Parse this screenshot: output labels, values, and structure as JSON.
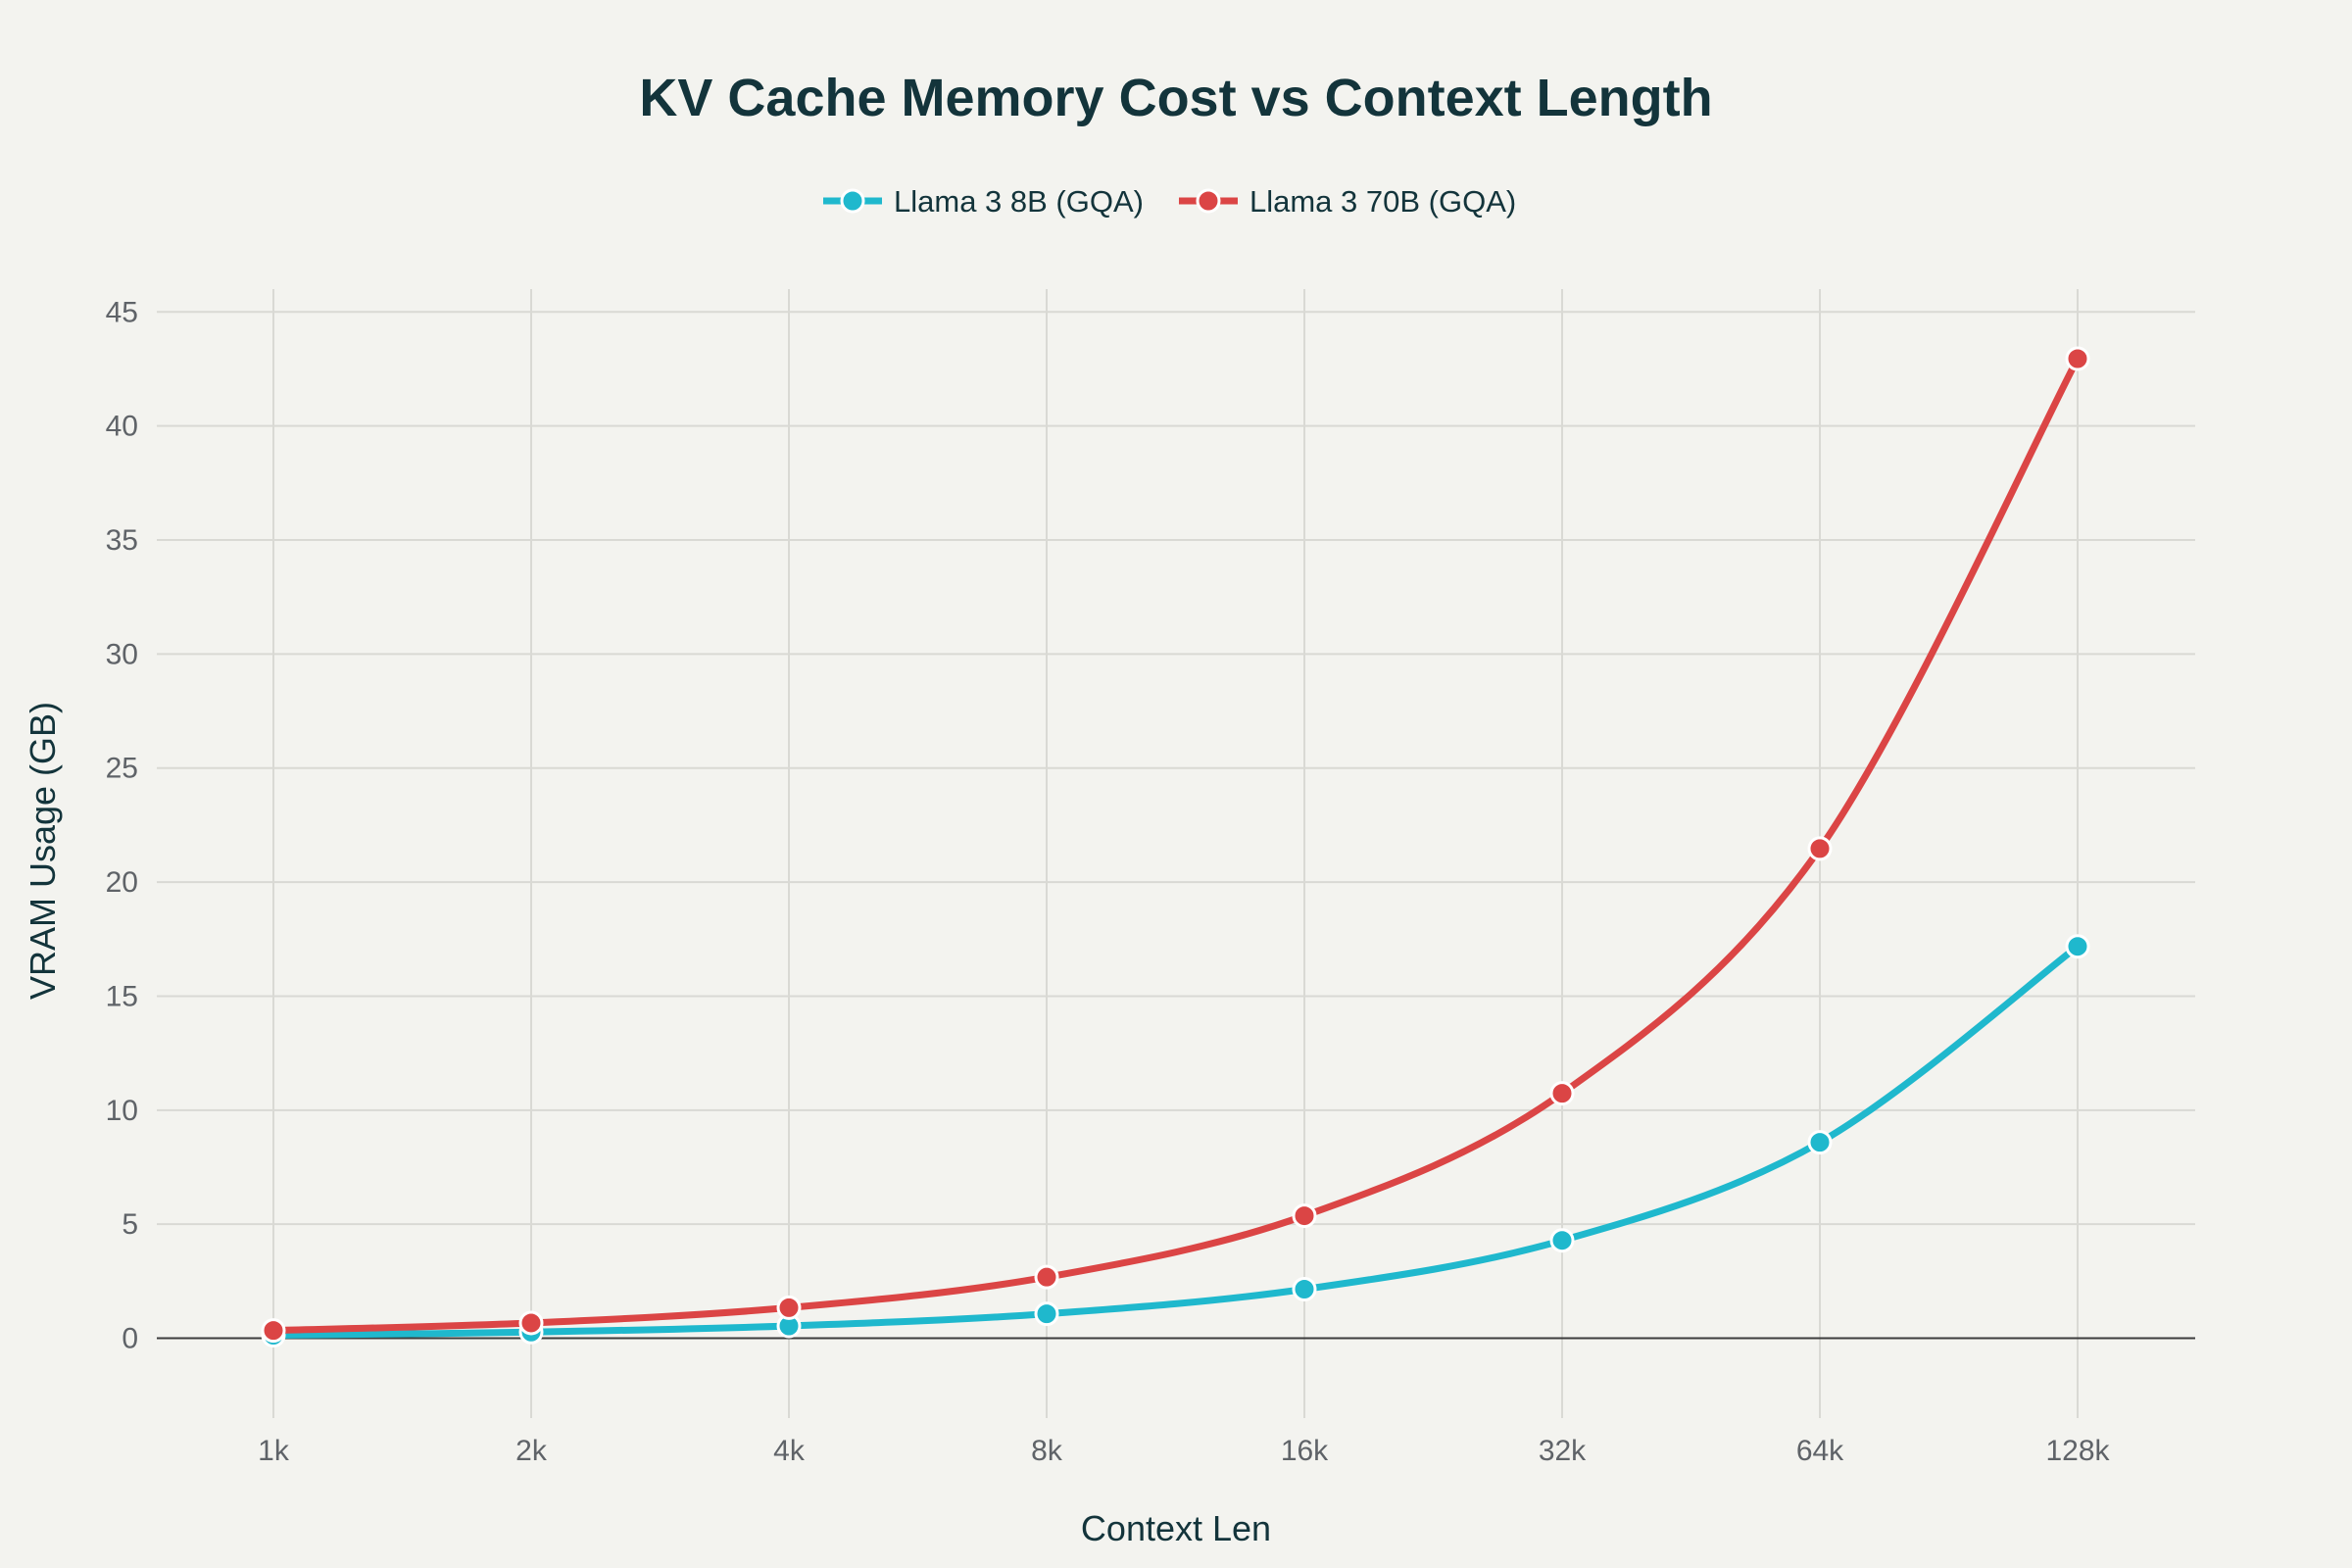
{
  "chart_data": {
    "type": "line",
    "title": "KV Cache Memory Cost vs Context Length",
    "xlabel": "Context Len",
    "ylabel": "VRAM Usage (GB)",
    "categories": [
      "1k",
      "2k",
      "4k",
      "8k",
      "16k",
      "32k",
      "64k",
      "128k"
    ],
    "ylim": [
      -3.5,
      46
    ],
    "yticks": [
      0,
      5,
      10,
      15,
      20,
      25,
      30,
      35,
      40,
      45
    ],
    "grid": true,
    "legend_position": "top-center",
    "series": [
      {
        "name": "Llama 3 8B (GQA)",
        "color": "#1fb8cd",
        "values": [
          0.13,
          0.27,
          0.54,
          1.07,
          2.15,
          4.29,
          8.59,
          17.18
        ]
      },
      {
        "name": "Llama 3 70B (GQA)",
        "color": "#db4545",
        "values": [
          0.34,
          0.67,
          1.34,
          2.68,
          5.37,
          10.74,
          21.47,
          42.95
        ]
      }
    ]
  }
}
